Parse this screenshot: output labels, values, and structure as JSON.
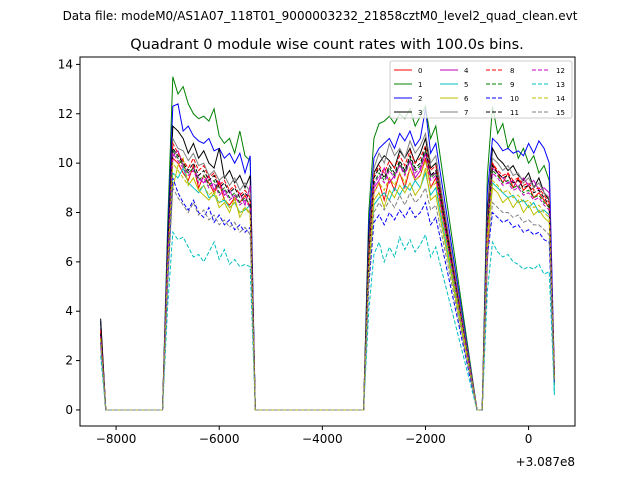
{
  "header": {
    "file_label": "Data file: modeM0/AS1A07_118T01_9000003232_21858cztM0_level2_quad_clean.evt"
  },
  "chart_data": {
    "type": "line",
    "title": "Quadrant 0 module wise count rates with 100.0s bins.",
    "xlabel": "",
    "ylabel": "",
    "offset_text": "+3.087e8",
    "xlim": [
      -8700,
      900
    ],
    "ylim": [
      -0.65,
      14.3
    ],
    "xticks": [
      -8000,
      -6000,
      -4000,
      -2000,
      0
    ],
    "xtick_labels": [
      "−8000",
      "−6000",
      "−4000",
      "−2000",
      "0"
    ],
    "yticks": [
      0,
      2,
      4,
      6,
      8,
      10,
      12,
      14
    ],
    "ytick_labels": [
      "0",
      "2",
      "4",
      "6",
      "8",
      "10",
      "12",
      "14"
    ],
    "legend_position": "top-right",
    "x": [
      -8300,
      -8200,
      -7100,
      -7000,
      -6900,
      -6800,
      -6700,
      -6600,
      -6500,
      -6400,
      -6300,
      -6200,
      -6100,
      -6000,
      -5900,
      -5800,
      -5700,
      -5600,
      -5500,
      -5400,
      -5300,
      -3200,
      -3100,
      -3000,
      -2900,
      -2800,
      -2700,
      -2600,
      -2500,
      -2400,
      -2300,
      -2200,
      -2100,
      -2000,
      -1900,
      -1800,
      -1000,
      -900,
      -800,
      -700,
      -600,
      -500,
      -400,
      -300,
      -200,
      -100,
      0,
      100,
      200,
      300,
      400,
      500
    ],
    "series": [
      {
        "name": "0",
        "color": "#ff0000",
        "dash": false,
        "values": [
          3.3,
          0,
          0,
          6.0,
          10.2,
          10.0,
          9.6,
          9.3,
          9.9,
          9.0,
          9.5,
          9.2,
          8.8,
          9.2,
          8.5,
          8.3,
          8.6,
          8.4,
          8.7,
          8.2,
          0,
          0,
          6.0,
          8.8,
          9.2,
          8.5,
          9.4,
          8.9,
          9.6,
          9.0,
          9.8,
          9.3,
          9.5,
          10.2,
          9.0,
          9.4,
          0,
          0,
          6.0,
          10.0,
          9.6,
          9.2,
          9.6,
          9.0,
          9.4,
          8.9,
          9.1,
          8.6,
          8.8,
          8.5,
          8.2,
          1.6
        ]
      },
      {
        "name": "1",
        "color": "#008000",
        "dash": false,
        "values": [
          3.5,
          0,
          0,
          7.5,
          13.5,
          12.8,
          13.1,
          12.4,
          12.0,
          11.8,
          11.9,
          11.7,
          12.2,
          11.1,
          10.8,
          11.0,
          10.4,
          11.3,
          10.3,
          10.1,
          0,
          0,
          8.0,
          11.0,
          11.6,
          11.7,
          11.9,
          11.6,
          12.0,
          11.8,
          12.2,
          11.5,
          11.9,
          12.3,
          11.0,
          11.5,
          0,
          0,
          9.5,
          12.3,
          11.2,
          11.6,
          10.6,
          11.0,
          10.2,
          10.6,
          10.0,
          10.3,
          9.6,
          9.9,
          9.3,
          1.0
        ]
      },
      {
        "name": "2",
        "color": "#0000ff",
        "dash": false,
        "values": [
          3.6,
          0,
          0,
          7.0,
          12.3,
          12.4,
          11.3,
          11.5,
          11.1,
          10.9,
          10.8,
          11.0,
          10.5,
          10.6,
          10.2,
          10.4,
          10.0,
          10.4,
          9.6,
          10.3,
          0,
          0,
          7.5,
          10.2,
          10.6,
          10.8,
          11.0,
          10.6,
          11.2,
          10.9,
          11.3,
          10.7,
          11.0,
          12.2,
          10.4,
          10.8,
          0,
          0,
          8.8,
          11.0,
          10.8,
          10.5,
          10.6,
          10.4,
          10.5,
          10.3,
          10.8,
          10.4,
          10.9,
          10.6,
          10.0,
          1.5
        ]
      },
      {
        "name": "3",
        "color": "#000000",
        "dash": false,
        "values": [
          3.7,
          0,
          0,
          6.5,
          11.5,
          11.3,
          11.0,
          10.4,
          10.8,
          10.2,
          10.5,
          10.0,
          9.8,
          10.6,
          9.4,
          9.7,
          9.2,
          9.5,
          9.0,
          9.5,
          0,
          0,
          7.0,
          9.6,
          10.0,
          10.3,
          10.1,
          9.8,
          10.5,
          10.2,
          10.6,
          10.0,
          10.4,
          11.0,
          9.8,
          10.0,
          0,
          0,
          8.0,
          10.6,
          10.2,
          10.0,
          9.7,
          9.9,
          9.5,
          9.3,
          9.6,
          9.0,
          9.4,
          8.8,
          8.5,
          1.3
        ]
      },
      {
        "name": "4",
        "color": "#bf00bf",
        "dash": false,
        "values": [
          3.0,
          0,
          0,
          6.2,
          10.3,
          10.5,
          9.9,
          9.6,
          9.8,
          9.4,
          9.2,
          9.5,
          8.9,
          9.3,
          8.7,
          8.9,
          8.5,
          8.8,
          8.3,
          9.1,
          0,
          0,
          6.0,
          9.0,
          9.3,
          9.8,
          9.2,
          9.5,
          9.9,
          9.6,
          10.1,
          9.4,
          9.7,
          10.4,
          9.5,
          9.6,
          0,
          0,
          7.5,
          9.8,
          9.6,
          9.4,
          9.2,
          9.3,
          9.0,
          9.4,
          9.1,
          9.3,
          8.9,
          9.0,
          8.8,
          1.4
        ]
      },
      {
        "name": "5",
        "color": "#00bfbf",
        "dash": false,
        "values": [
          2.8,
          0,
          0,
          5.8,
          9.6,
          9.4,
          9.8,
          9.2,
          9.0,
          8.8,
          9.1,
          8.6,
          8.7,
          8.4,
          8.5,
          8.2,
          8.4,
          8.0,
          8.1,
          8.3,
          0,
          0,
          5.8,
          8.3,
          8.6,
          8.8,
          8.5,
          9.0,
          8.7,
          9.1,
          8.9,
          9.3,
          9.0,
          9.6,
          8.7,
          9.0,
          0,
          0,
          7.0,
          9.2,
          9.0,
          8.8,
          8.6,
          8.7,
          8.4,
          8.5,
          8.2,
          8.4,
          8.0,
          8.1,
          7.9,
          0.6
        ]
      },
      {
        "name": "6",
        "color": "#bfbf00",
        "dash": false,
        "values": [
          2.9,
          0,
          0,
          5.5,
          9.0,
          9.9,
          10.2,
          9.1,
          9.4,
          8.9,
          8.7,
          8.5,
          8.8,
          8.2,
          8.4,
          8.0,
          8.6,
          7.8,
          8.2,
          8.0,
          0,
          0,
          5.5,
          8.5,
          8.8,
          8.2,
          8.9,
          8.6,
          9.1,
          8.8,
          9.2,
          8.7,
          9.0,
          9.8,
          8.5,
          8.7,
          0,
          0,
          6.8,
          9.0,
          8.8,
          8.4,
          8.6,
          8.2,
          8.5,
          8.0,
          8.3,
          7.9,
          8.1,
          7.8,
          7.6,
          1.2
        ]
      },
      {
        "name": "7",
        "color": "#808080",
        "dash": false,
        "values": [
          3.1,
          0,
          0,
          6.0,
          11.0,
          10.6,
          10.5,
          10.1,
          10.4,
          9.9,
          10.0,
          9.5,
          9.7,
          9.3,
          9.5,
          9.1,
          9.4,
          8.9,
          9.2,
          8.8,
          0,
          0,
          6.5,
          9.8,
          10.4,
          10.0,
          10.8,
          10.3,
          10.6,
          10.2,
          10.9,
          10.4,
          10.7,
          11.2,
          10.0,
          10.3,
          0,
          0,
          7.8,
          10.2,
          10.0,
          9.7,
          9.9,
          9.5,
          9.6,
          9.2,
          9.4,
          9.0,
          9.2,
          8.8,
          8.6,
          1.3
        ]
      },
      {
        "name": "8",
        "color": "#ff0000",
        "dash": true,
        "values": [
          3.2,
          0,
          0,
          6.3,
          10.8,
          10.4,
          10.1,
          9.8,
          10.2,
          9.7,
          9.9,
          9.4,
          9.6,
          9.1,
          9.3,
          8.9,
          9.1,
          8.7,
          8.9,
          8.6,
          0,
          0,
          6.2,
          9.5,
          9.9,
          9.6,
          10.1,
          9.8,
          10.3,
          9.9,
          10.5,
          10.0,
          10.2,
          10.7,
          9.7,
          9.9,
          0,
          0,
          7.6,
          10.0,
          9.7,
          9.5,
          9.6,
          9.3,
          9.4,
          9.1,
          9.2,
          8.9,
          9.0,
          8.7,
          8.4,
          1.3
        ]
      },
      {
        "name": "9",
        "color": "#008000",
        "dash": true,
        "values": [
          3.0,
          0,
          0,
          6.1,
          10.5,
          10.2,
          9.9,
          9.6,
          9.8,
          9.3,
          9.5,
          9.1,
          9.3,
          8.8,
          9.0,
          8.6,
          8.8,
          8.4,
          8.6,
          8.3,
          0,
          0,
          6.0,
          9.2,
          9.6,
          9.3,
          9.8,
          9.5,
          10.0,
          9.6,
          10.2,
          9.7,
          9.9,
          10.5,
          9.4,
          9.6,
          0,
          0,
          7.3,
          9.7,
          9.5,
          9.2,
          9.3,
          9.0,
          9.1,
          8.8,
          8.9,
          8.6,
          8.7,
          8.4,
          8.2,
          1.2
        ]
      },
      {
        "name": "10",
        "color": "#0000ff",
        "dash": true,
        "values": [
          2.7,
          0,
          0,
          5.2,
          9.4,
          8.8,
          8.4,
          8.1,
          8.5,
          8.0,
          7.8,
          8.2,
          7.6,
          7.9,
          7.5,
          7.7,
          7.3,
          7.5,
          7.2,
          7.4,
          0,
          0,
          5.0,
          7.6,
          7.9,
          7.5,
          8.0,
          7.7,
          8.1,
          7.8,
          8.2,
          7.8,
          8.0,
          8.4,
          7.5,
          7.8,
          0,
          0,
          6.2,
          8.0,
          7.8,
          7.6,
          7.7,
          7.4,
          7.5,
          7.2,
          7.3,
          7.1,
          7.2,
          6.9,
          6.8,
          1.1
        ]
      },
      {
        "name": "11",
        "color": "#000000",
        "dash": true,
        "values": [
          3.1,
          0,
          0,
          6.2,
          10.6,
          10.3,
          10.0,
          9.7,
          10.0,
          9.5,
          9.7,
          9.3,
          9.5,
          9.0,
          9.2,
          8.8,
          9.0,
          8.6,
          8.8,
          8.5,
          0,
          0,
          6.1,
          9.4,
          9.8,
          9.4,
          9.9,
          9.6,
          10.1,
          9.7,
          10.3,
          9.8,
          10.0,
          10.6,
          9.5,
          9.7,
          0,
          0,
          7.5,
          9.9,
          9.6,
          9.4,
          9.5,
          9.2,
          9.3,
          9.0,
          9.1,
          8.8,
          8.9,
          8.6,
          8.3,
          1.3
        ]
      },
      {
        "name": "12",
        "color": "#bf00bf",
        "dash": true,
        "values": [
          3.0,
          0,
          0,
          6.0,
          10.4,
          10.1,
          9.8,
          9.5,
          9.7,
          9.2,
          9.4,
          9.0,
          9.2,
          8.7,
          8.9,
          8.5,
          8.7,
          8.3,
          8.5,
          8.2,
          0,
          0,
          5.9,
          9.1,
          9.5,
          9.2,
          9.7,
          9.4,
          9.9,
          9.5,
          10.1,
          9.6,
          9.8,
          10.4,
          9.3,
          9.5,
          0,
          0,
          7.2,
          9.6,
          9.4,
          9.1,
          9.2,
          8.9,
          9.0,
          8.7,
          8.8,
          8.5,
          8.6,
          8.3,
          8.1,
          1.2
        ]
      },
      {
        "name": "13",
        "color": "#00bfbf",
        "dash": true,
        "values": [
          2.2,
          0,
          0,
          4.2,
          7.2,
          6.9,
          7.0,
          6.6,
          6.2,
          6.3,
          6.0,
          6.4,
          6.8,
          6.1,
          6.5,
          5.9,
          6.1,
          5.8,
          5.9,
          5.8,
          0,
          0,
          4.0,
          6.3,
          6.8,
          6.0,
          6.6,
          6.2,
          7.0,
          6.5,
          6.9,
          6.4,
          6.7,
          7.1,
          6.2,
          6.6,
          0,
          0,
          4.8,
          6.8,
          6.4,
          6.2,
          6.3,
          6.0,
          5.9,
          5.7,
          5.8,
          5.7,
          5.9,
          5.5,
          5.6,
          0.7
        ]
      },
      {
        "name": "14",
        "color": "#bfbf00",
        "dash": true,
        "values": [
          2.9,
          0,
          0,
          5.8,
          10.0,
          9.7,
          9.4,
          9.1,
          9.4,
          8.9,
          9.1,
          8.7,
          8.9,
          8.4,
          8.6,
          8.2,
          8.4,
          8.0,
          8.2,
          7.9,
          0,
          0,
          5.7,
          8.8,
          9.2,
          8.9,
          9.4,
          9.1,
          9.6,
          9.2,
          9.8,
          9.3,
          9.5,
          10.1,
          9.0,
          9.2,
          0,
          0,
          7.0,
          9.3,
          9.1,
          8.8,
          8.9,
          8.6,
          8.7,
          8.4,
          8.5,
          8.2,
          8.3,
          8.0,
          7.8,
          1.2
        ]
      },
      {
        "name": "15",
        "color": "#808080",
        "dash": true,
        "values": [
          2.6,
          0,
          0,
          5.0,
          9.0,
          8.6,
          8.3,
          8.0,
          8.4,
          7.9,
          8.1,
          7.7,
          7.9,
          7.5,
          7.7,
          7.4,
          7.6,
          7.2,
          7.4,
          7.1,
          0,
          0,
          5.2,
          8.0,
          8.4,
          8.1,
          8.5,
          8.2,
          8.7,
          8.3,
          8.8,
          8.4,
          8.6,
          9.0,
          8.1,
          8.3,
          0,
          0,
          6.3,
          8.4,
          8.2,
          8.0,
          8.0,
          7.8,
          7.9,
          7.6,
          7.7,
          7.5,
          7.5,
          7.3,
          7.1,
          1.1
        ]
      }
    ]
  }
}
